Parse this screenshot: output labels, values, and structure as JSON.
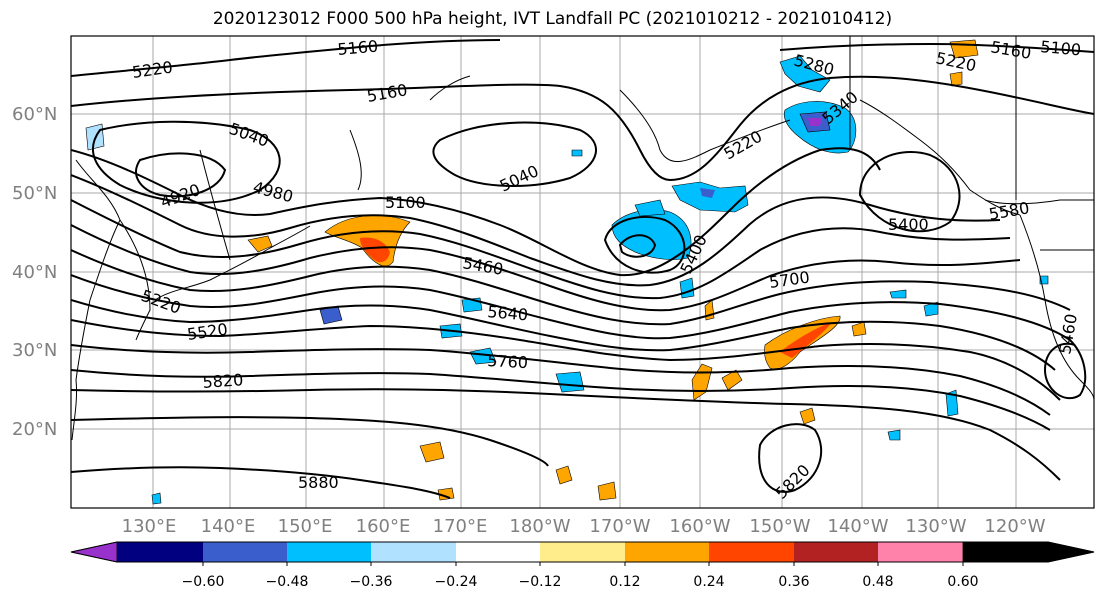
{
  "title": "2020123012 F000 500 hPa height, IVT Landfall PC (2021010212 - 2021010412)",
  "lat_labels": [
    "60°N",
    "50°N",
    "40°N",
    "30°N",
    "20°N"
  ],
  "lon_labels": [
    "130°E",
    "140°E",
    "150°E",
    "160°E",
    "170°E",
    "180°W",
    "170°W",
    "160°W",
    "150°W",
    "140°W",
    "130°W",
    "120°W"
  ],
  "contour_labels": [
    "5160",
    "5100",
    "5220",
    "5160",
    "5280",
    "5220",
    "5160",
    "5040",
    "5340",
    "5220",
    "4920",
    "4980",
    "5040",
    "5100",
    "5400",
    "5580",
    "5460",
    "5400",
    "5220",
    "5520",
    "5640",
    "5700",
    "5760",
    "5820",
    "5880",
    "5820",
    "5460"
  ],
  "colorbar": {
    "colors": [
      "#9932CC",
      "#000080",
      "#3A5FCD",
      "#00BFFF",
      "#B0E2FF",
      "#FFFFFF",
      "#FFEC8B",
      "#FFA500",
      "#FF4500",
      "#B22222",
      "#FF82AB"
    ],
    "tick_labels": [
      "−0.60",
      "−0.48",
      "−0.36",
      "−0.24",
      "−0.12",
      "0.12",
      "0.24",
      "0.36",
      "0.48",
      "0.60"
    ]
  }
}
